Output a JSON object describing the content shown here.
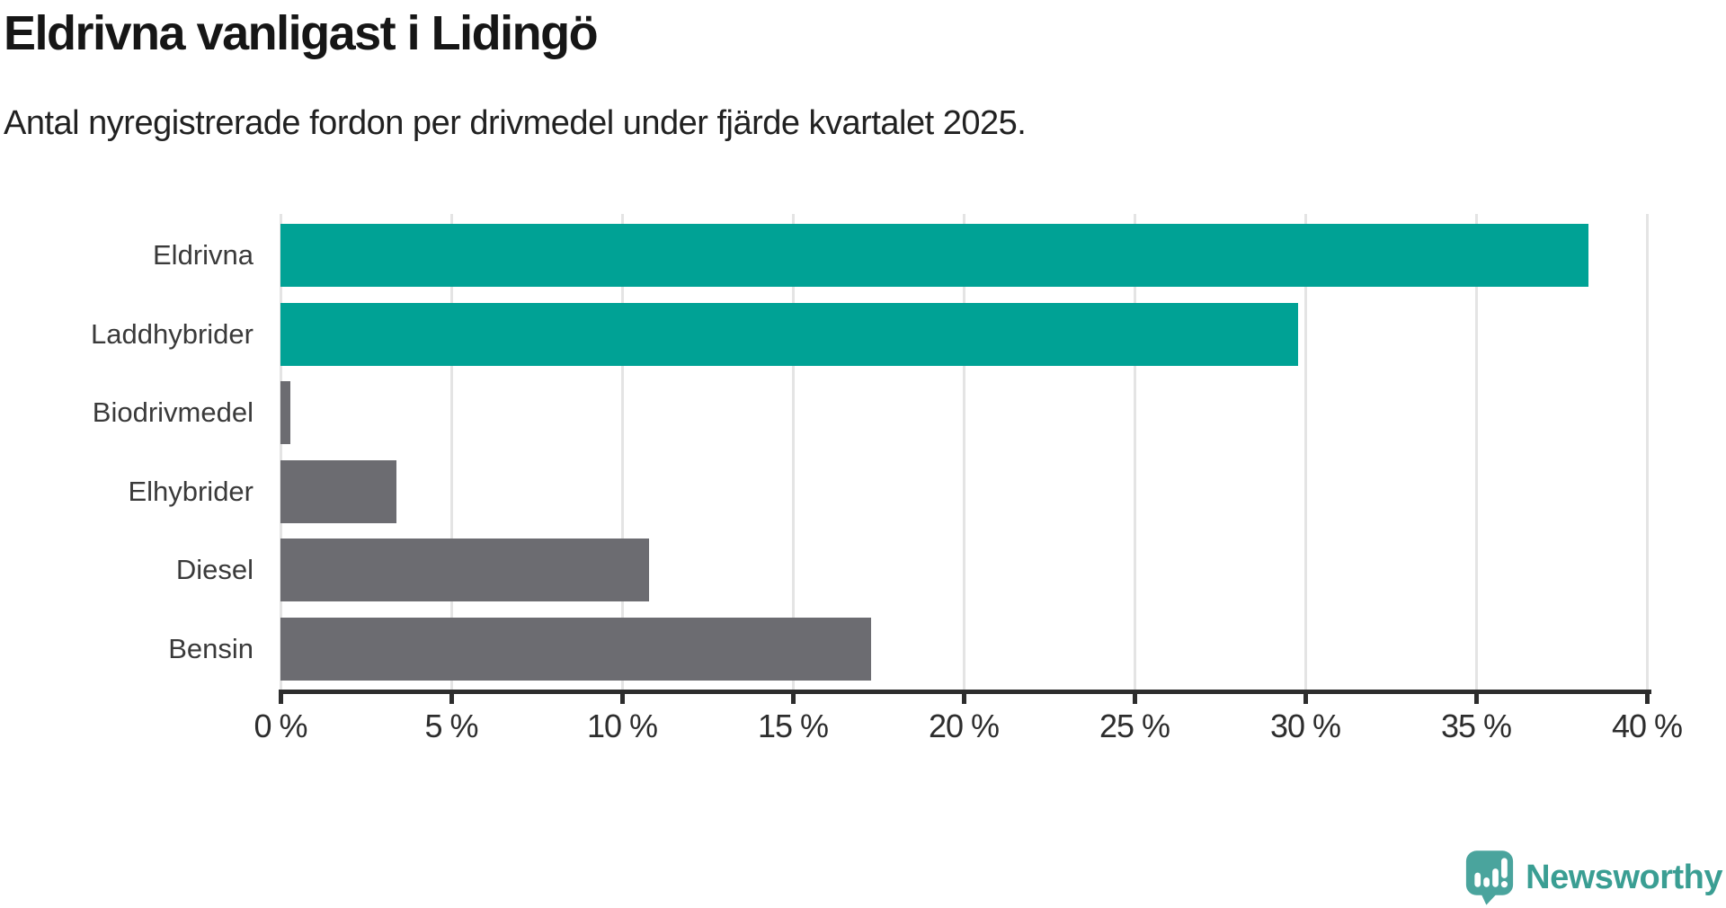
{
  "chart_data": {
    "type": "bar",
    "orientation": "horizontal",
    "title": "Eldrivna vanligast i Lidingö",
    "subtitle": "Antal nyregistrerade fordon per drivmedel under fjärde kvartalet 2025.",
    "categories": [
      "Eldrivna",
      "Laddhybrider",
      "Biodrivmedel",
      "Elhybrider",
      "Diesel",
      "Bensin"
    ],
    "values": [
      38.3,
      29.8,
      0.3,
      3.4,
      10.8,
      17.3
    ],
    "unit": "%",
    "series_colors": [
      "#00a295",
      "#00a295",
      "#6c6c71",
      "#6c6c71",
      "#6c6c71",
      "#6c6c71"
    ],
    "highlight_color": "#00a295",
    "default_color": "#6c6c71",
    "xlim": [
      0,
      40
    ],
    "xticks": [
      0,
      5,
      10,
      15,
      20,
      25,
      30,
      35,
      40
    ],
    "xtick_labels": [
      "0 %",
      "5 %",
      "10 %",
      "15 %",
      "20 %",
      "25 %",
      "30 %",
      "35 %",
      "40 %"
    ],
    "grid": "vertical-gridlines-only",
    "legend": "none"
  },
  "branding": {
    "logo_text": "Newsworthy",
    "text_color": "#3a9e93",
    "icon_color": "#4aa49d",
    "icon": "newsworthy-speech-bubble-chart-icon"
  },
  "colors": {
    "axis": "#2d2d2d",
    "gridline": "#e4e4e4",
    "title_text": "#161616",
    "label_text": "#3a3a3a"
  }
}
